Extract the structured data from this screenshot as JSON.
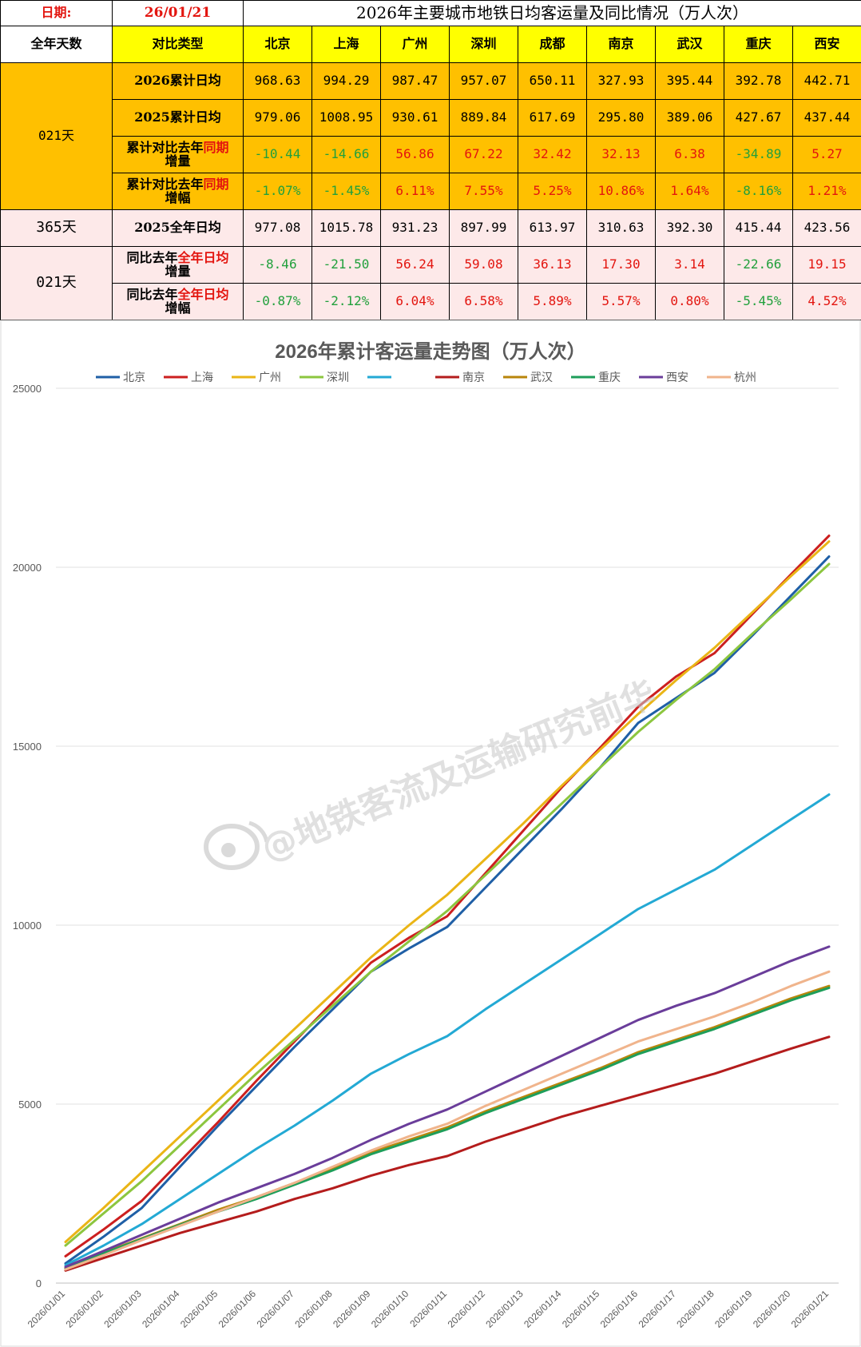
{
  "header": {
    "date_label": "日期:",
    "date_value": "26/01/21",
    "title": "2026年主要城市地铁日均客运量及同比情况（万人次）"
  },
  "table": {
    "col_days": "全年天数",
    "col_type": "对比类型",
    "cities": [
      "北京",
      "上海",
      "广州",
      "深圳",
      "成都",
      "南京",
      "武汉",
      "重庆",
      "西安"
    ],
    "group1_days": "021天",
    "group2_days": "365天",
    "group3_days": "021天",
    "rows": {
      "r2026": {
        "label": "2026累计日均",
        "values": [
          "968.63",
          "994.29",
          "987.47",
          "957.07",
          "650.11",
          "327.93",
          "395.44",
          "392.78",
          "442.71"
        ]
      },
      "r2025": {
        "label": "2025累计日均",
        "values": [
          "979.06",
          "1008.95",
          "930.61",
          "889.84",
          "617.69",
          "295.80",
          "389.06",
          "427.67",
          "437.44"
        ]
      },
      "rdiff": {
        "label_a": "累计对比去年",
        "label_b": "同期",
        "label_c": "增量",
        "values": [
          "-10.44",
          "-14.66",
          "56.86",
          "67.22",
          "32.42",
          "32.13",
          "6.38",
          "-34.89",
          "5.27"
        ]
      },
      "rpct": {
        "label_a": "累计对比去年",
        "label_b": "同期",
        "label_c": "增幅",
        "values": [
          "-1.07%",
          "-1.45%",
          "6.11%",
          "7.55%",
          "5.25%",
          "10.86%",
          "1.64%",
          "-8.16%",
          "1.21%"
        ]
      },
      "rfull": {
        "label": "2025全年日均",
        "values": [
          "977.08",
          "1015.78",
          "931.23",
          "897.99",
          "613.97",
          "310.63",
          "392.30",
          "415.44",
          "423.56"
        ]
      },
      "rfdiff": {
        "label_a": "同比去年",
        "label_b": "全年日均",
        "label_c": "增量",
        "values": [
          "-8.46",
          "-21.50",
          "56.24",
          "59.08",
          "36.13",
          "17.30",
          "3.14",
          "-22.66",
          "19.15"
        ]
      },
      "rfpct": {
        "label_a": "同比去年",
        "label_b": "全年日均",
        "label_c": "增幅",
        "values": [
          "-0.87%",
          "-2.12%",
          "6.04%",
          "6.58%",
          "5.89%",
          "5.57%",
          "0.80%",
          "-5.45%",
          "4.52%"
        ]
      }
    }
  },
  "watermark": "@地铁客流及运输研究前华",
  "chart_data": {
    "type": "line",
    "title": "2026年累计客运量走势图（万人次）",
    "xlabel": "",
    "ylabel": "",
    "ylim": [
      0,
      25000
    ],
    "yticks": [
      "0",
      "5000",
      "10000",
      "15000",
      "20000",
      "25000"
    ],
    "grid": true,
    "legend_position": "top",
    "categories": [
      "2026/01/01",
      "2026/01/02",
      "2026/01/03",
      "2026/01/04",
      "2026/01/05",
      "2026/01/06",
      "2026/01/07",
      "2026/01/08",
      "2026/01/09",
      "2026/01/10",
      "2026/01/11",
      "2026/01/12",
      "2026/01/13",
      "2026/01/14",
      "2026/01/15",
      "2026/01/16",
      "2026/01/17",
      "2026/01/18",
      "2026/01/19",
      "2026/01/20",
      "2026/01/21"
    ],
    "series": [
      {
        "name": "北京",
        "color": "#1f5fa6",
        "values": [
          550,
          1300,
          2100,
          3250,
          4400,
          5500,
          6600,
          7650,
          8700,
          9350,
          9950,
          11050,
          12150,
          13250,
          14400,
          15650,
          16350,
          17050,
          18100,
          19200,
          20300
        ]
      },
      {
        "name": "上海",
        "color": "#cc1f1f",
        "values": [
          750,
          1500,
          2300,
          3400,
          4500,
          5650,
          6750,
          7850,
          8950,
          9650,
          10250,
          11450,
          12650,
          13850,
          14950,
          16100,
          16950,
          17600,
          18700,
          19800,
          20880
        ]
      },
      {
        "name": "广州",
        "color": "#eab516",
        "values": [
          1150,
          2100,
          3100,
          4100,
          5100,
          6100,
          7100,
          8100,
          9100,
          10000,
          10850,
          11850,
          12850,
          13900,
          14900,
          15900,
          16850,
          17750,
          18750,
          19750,
          20720
        ]
      },
      {
        "name": "深圳",
        "color": "#8cc63f",
        "values": [
          1050,
          1950,
          2850,
          3850,
          4850,
          5850,
          6800,
          7750,
          8700,
          9550,
          10400,
          11400,
          12400,
          13400,
          14400,
          15400,
          16300,
          17150,
          18150,
          19100,
          20090
        ]
      },
      {
        "name": "",
        "color": "#23a9d4",
        "values": [
          500,
          1050,
          1650,
          2350,
          3050,
          3750,
          4400,
          5100,
          5850,
          6400,
          6900,
          7650,
          8350,
          9050,
          9750,
          10450,
          11000,
          11550,
          12250,
          12950,
          13650
        ]
      },
      {
        "name": "南京",
        "color": "#b41c1c",
        "values": [
          350,
          700,
          1050,
          1400,
          1700,
          2000,
          2350,
          2650,
          3000,
          3300,
          3550,
          3950,
          4300,
          4650,
          4950,
          5250,
          5550,
          5850,
          6200,
          6550,
          6880
        ]
      },
      {
        "name": "武汉",
        "color": "#b8860b",
        "values": [
          420,
          850,
          1250,
          1650,
          2050,
          2400,
          2800,
          3200,
          3650,
          4000,
          4350,
          4800,
          5200,
          5600,
          6000,
          6450,
          6800,
          7150,
          7550,
          7950,
          8300
        ]
      },
      {
        "name": "重庆",
        "color": "#1e9e5a",
        "values": [
          400,
          830,
          1230,
          1630,
          2000,
          2350,
          2750,
          3150,
          3600,
          3950,
          4300,
          4750,
          5150,
          5550,
          5950,
          6400,
          6750,
          7100,
          7500,
          7900,
          8250
        ]
      },
      {
        "name": "西安",
        "color": "#6a3d9a",
        "values": [
          450,
          900,
          1350,
          1800,
          2250,
          2650,
          3050,
          3500,
          4000,
          4450,
          4850,
          5350,
          5850,
          6350,
          6850,
          7350,
          7750,
          8100,
          8550,
          9000,
          9400
        ]
      },
      {
        "name": "杭州",
        "color": "#f0b48c",
        "values": [
          380,
          780,
          1200,
          1600,
          2000,
          2400,
          2800,
          3250,
          3700,
          4100,
          4450,
          4950,
          5400,
          5850,
          6300,
          6750,
          7100,
          7450,
          7850,
          8300,
          8700
        ]
      }
    ]
  }
}
